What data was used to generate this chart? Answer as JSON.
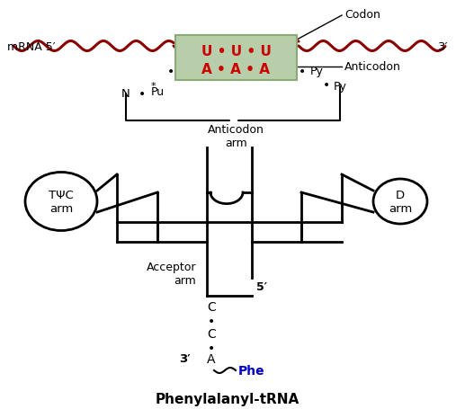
{
  "bg_color": "#ffffff",
  "mrna_color": "#8B0000",
  "codon_box_color": "#b8ceaa",
  "codon_box_edge": "#8aaa78",
  "codon_text_color": "#cc0000",
  "label_color": "#000000",
  "phe_color": "#0000cc",
  "line_color": "#000000",
  "codon_label": "Codon",
  "anticodon_label": "Anticodon",
  "anticodon_arm_label": "Anticodon\narm",
  "acceptor_arm_label": "Acceptor\narm",
  "tpsi_label": "TΨC\narm",
  "d_arm_label": "D\narm",
  "mrna_5_label": "mRNA 5′",
  "mrna_3_label": "3′",
  "five_prime_label": "5′",
  "three_prime_label": "3′",
  "phe_label": "Phe",
  "codon_row": "U • U • U",
  "anticodon_row": "A • A • A",
  "n_label": "N",
  "pu_label": "Pu",
  "py1_label": "Py",
  "py2_label": "Py",
  "c_label": "C",
  "c2_label": "C",
  "a_label": "A",
  "bottom_title": "Phenylalanyl-tRNA"
}
